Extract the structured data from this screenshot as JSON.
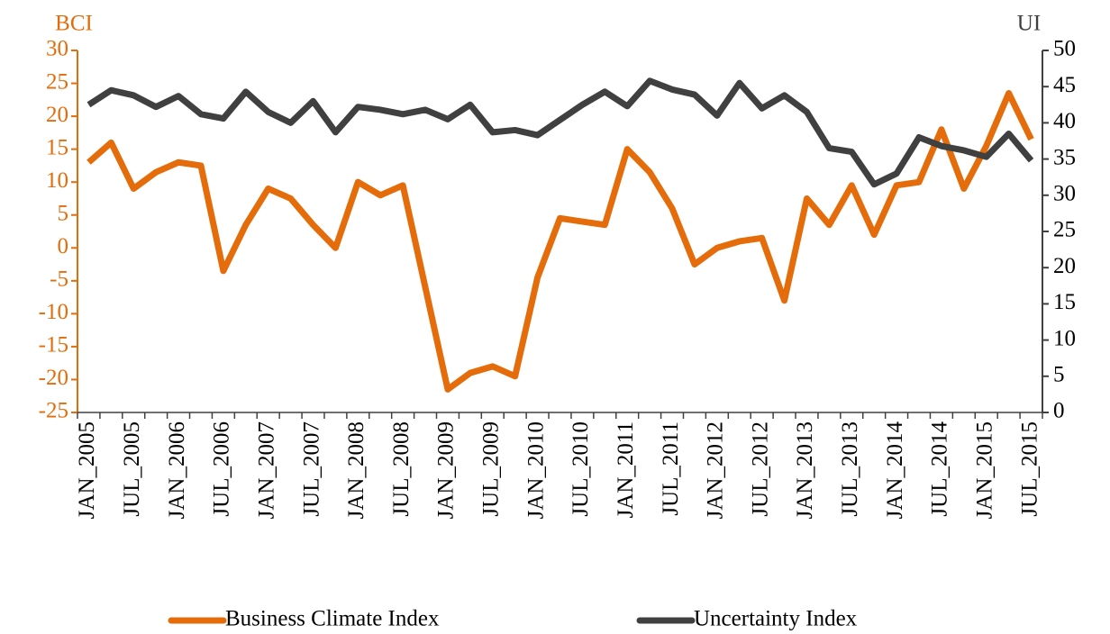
{
  "chart_data": {
    "type": "line",
    "y_label": "BCI",
    "y2_label": "UI",
    "categories": [
      "JAN_2005",
      null,
      "JUL_2005",
      null,
      "JAN_2006",
      null,
      "JUL_2006",
      null,
      "JAN_2007",
      null,
      "JUL_2007",
      null,
      "JAN_2008",
      null,
      "JUL_2008",
      null,
      "JAN_2009",
      null,
      "JUL_2009",
      null,
      "JAN_2010",
      null,
      "JUL_2010",
      null,
      "JAN_2011",
      null,
      "JUL_2011",
      null,
      "JAN_2012",
      null,
      "JUL_2012",
      null,
      "JAN_2013",
      null,
      "JUL_2013",
      null,
      "JAN_2014",
      null,
      "JUL_2014",
      null,
      "JAN_2015",
      null,
      "JUL_2015"
    ],
    "series": [
      {
        "name": "Business Climate Index",
        "color": "#e46c0a",
        "axis": "y",
        "values": [
          13,
          16,
          9,
          11.5,
          13,
          12.5,
          -3.5,
          3.5,
          9,
          7.5,
          3.5,
          0,
          10,
          8,
          9.5,
          -6,
          -21.5,
          -19,
          -18,
          -19.5,
          -4.5,
          4.5,
          4,
          3.5,
          15,
          11.5,
          6,
          -2.5,
          0,
          1,
          1.5,
          -8,
          7.5,
          3.5,
          9.5,
          2,
          9.5,
          10,
          18,
          9,
          15.5,
          23.5,
          16.5
        ]
      },
      {
        "name": "Uncertainty Index",
        "color": "#404040",
        "axis": "y2",
        "values": [
          42.5,
          44.5,
          43.8,
          42.2,
          43.7,
          41.2,
          40.6,
          44.3,
          41.5,
          40,
          43,
          38.7,
          42.2,
          41.8,
          41.2,
          41.8,
          40.5,
          42.5,
          38.7,
          39,
          38.3,
          40.4,
          42.5,
          44.3,
          42.3,
          45.8,
          44.6,
          43.9,
          41,
          45.5,
          42,
          43.8,
          41.5,
          36.5,
          36,
          31.5,
          33,
          38,
          36.8,
          36.2,
          35.3,
          38.5,
          34.8
        ]
      }
    ],
    "ylim": [
      -25,
      30
    ],
    "yticks": [
      -25,
      -20,
      -15,
      -10,
      -5,
      0,
      5,
      10,
      15,
      20,
      25,
      30
    ],
    "y2lim": [
      0,
      50
    ],
    "y2ticks": [
      0,
      5,
      10,
      15,
      20,
      25,
      30,
      35,
      40,
      45,
      50
    ],
    "y_color": "#e46c0a",
    "y2_color": "#404040",
    "legend": "bottom"
  }
}
